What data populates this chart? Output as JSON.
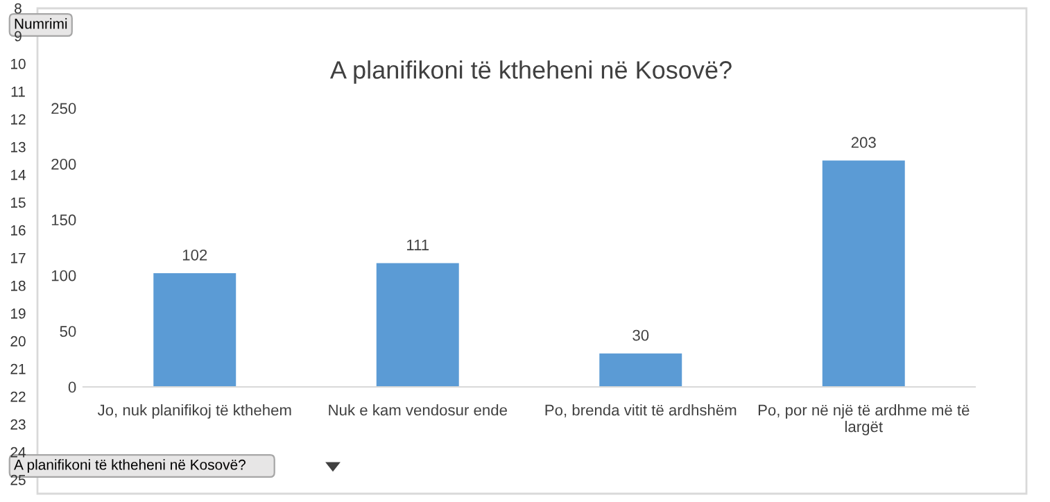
{
  "chart_data": {
    "type": "bar",
    "title": "A planifikoni të ktheheni në Kosovë?",
    "categories": [
      "Jo, nuk planifikoj të kthehem",
      "Nuk e kam vendosur ende",
      "Po, brenda vitit të ardhshëm",
      "Po, por në një të ardhme më të\nlargët"
    ],
    "values": [
      102,
      111,
      30,
      203
    ],
    "color": "#5b9bd5",
    "ylim": [
      0,
      250
    ],
    "yticks": [
      0,
      50,
      100,
      150,
      200,
      250
    ],
    "grid": false,
    "data_labels": true,
    "annotations": [
      "Numrimi",
      "A planifikoni të ktheheni në Kosovë?",
      "8",
      "9",
      "10",
      "11",
      "12",
      "13",
      "14",
      "15",
      "16",
      "17",
      "18",
      "19",
      "20",
      "21",
      "22",
      "23",
      "24",
      "25"
    ]
  }
}
